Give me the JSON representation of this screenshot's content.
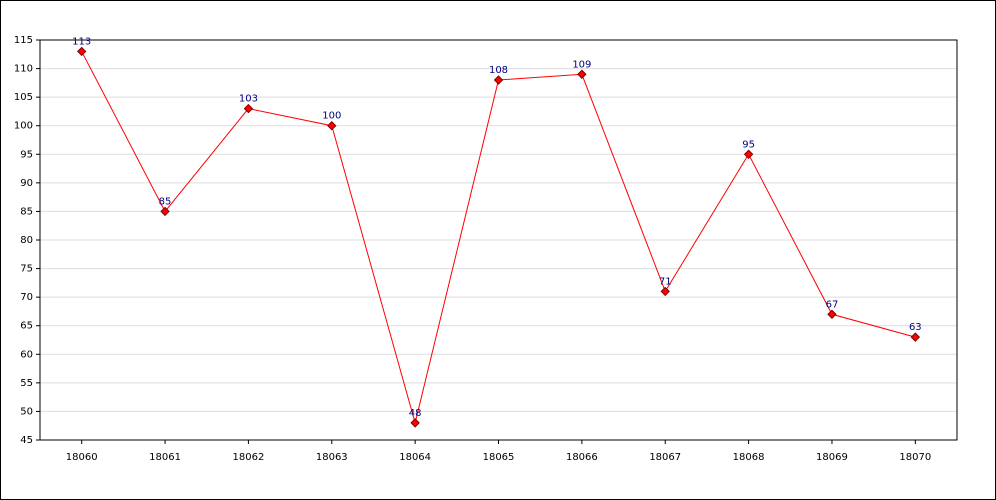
{
  "chart_data": {
    "type": "line",
    "categories": [
      "18060",
      "18061",
      "18062",
      "18063",
      "18064",
      "18065",
      "18066",
      "18067",
      "18068",
      "18069",
      "18070"
    ],
    "series": [
      {
        "color": "#ff0000",
        "values": [
          113,
          85,
          103,
          100,
          48,
          108,
          109,
          71,
          95,
          67,
          63
        ]
      }
    ],
    "ylim": [
      45,
      115
    ],
    "yticks": [
      45,
      50,
      55,
      60,
      65,
      70,
      75,
      80,
      85,
      90,
      95,
      100,
      105,
      110,
      115
    ],
    "grid": true
  }
}
